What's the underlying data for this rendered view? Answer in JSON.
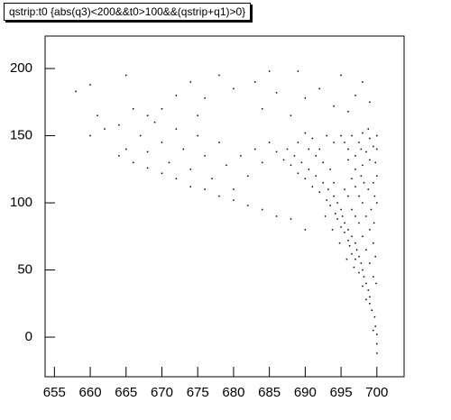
{
  "chart_data": {
    "type": "scatter",
    "title": "qstrip:t0 {abs(q3)<200&&t0>100&&(qstrip+q1)>0}",
    "color": "#000000",
    "xlim": [
      653.7,
      703.8
    ],
    "ylim": [
      -29.5,
      224.2
    ],
    "xticks": [
      655,
      660,
      665,
      670,
      675,
      680,
      685,
      690,
      695,
      700
    ],
    "yticks": [
      0,
      50,
      100,
      150,
      200
    ],
    "x": [
      700,
      700,
      700,
      699.8,
      699.7,
      699.5,
      699.3,
      699,
      699,
      698.8,
      698.5,
      698.5,
      698.2,
      698,
      698,
      697.8,
      697.5,
      697.5,
      697.2,
      697,
      697,
      696.8,
      696.5,
      696.5,
      696.2,
      696,
      696,
      695.8,
      695.5,
      695.5,
      695.2,
      695,
      695,
      694.8,
      694.5,
      694.5,
      694.2,
      694,
      693.8,
      693.5,
      693.2,
      693,
      692.8,
      692.5,
      692,
      691.5,
      691,
      690.5,
      690,
      689.5,
      689,
      688.5,
      688,
      687.5,
      687,
      686,
      685,
      684,
      683,
      682,
      681,
      680,
      679,
      678,
      677,
      676,
      675,
      674,
      673,
      672,
      671,
      670,
      669,
      668,
      667,
      666,
      665,
      664,
      662,
      661,
      660,
      658,
      660,
      696,
      696.5,
      697,
      697.5,
      698,
      698.5,
      699,
      699.5,
      699,
      698,
      697,
      696,
      695.5,
      695,
      694,
      693,
      692,
      691,
      690,
      689,
      700,
      700,
      699.8,
      698.8,
      697.8,
      699,
      698,
      697,
      696,
      695,
      694,
      692,
      690,
      689,
      688,
      686,
      685,
      684,
      683,
      680,
      678,
      676,
      675,
      672,
      670,
      668,
      665,
      674,
      690,
      688,
      686,
      684,
      682,
      680,
      678,
      676,
      674,
      672,
      670,
      668,
      666,
      664,
      699.5,
      699,
      698.5,
      698,
      697.5,
      697,
      696.5,
      696,
      695.5,
      699.8,
      699.5,
      699,
      698.5,
      698,
      697.5,
      697,
      696.5,
      699.9,
      699.6,
      699.2,
      698.8,
      698.2,
      697.8,
      699.5,
      700,
      700,
      699.7,
      694,
      693.5,
      692.5,
      691.5,
      690.5
    ],
    "values": [
      -12,
      -5,
      2,
      8,
      15,
      5,
      20,
      25,
      30,
      35,
      28,
      40,
      45,
      38,
      50,
      55,
      48,
      60,
      65,
      58,
      70,
      52,
      62,
      75,
      68,
      80,
      72,
      58,
      85,
      78,
      90,
      82,
      95,
      70,
      100,
      88,
      92,
      105,
      80,
      98,
      110,
      102,
      90,
      115,
      108,
      120,
      112,
      125,
      118,
      130,
      122,
      135,
      128,
      140,
      132,
      138,
      145,
      130,
      140,
      120,
      135,
      110,
      128,
      145,
      118,
      135,
      150,
      125,
      140,
      155,
      130,
      145,
      160,
      138,
      150,
      170,
      140,
      158,
      155,
      165,
      188,
      183,
      150,
      140,
      150,
      135,
      145,
      152,
      138,
      148,
      142,
      132,
      128,
      125,
      132,
      145,
      150,
      145,
      150,
      140,
      148,
      152,
      145,
      140,
      150,
      130,
      155,
      140,
      175,
      190,
      180,
      168,
      195,
      172,
      185,
      178,
      198,
      165,
      182,
      198,
      170,
      190,
      185,
      195,
      178,
      165,
      180,
      170,
      165,
      195,
      190,
      80,
      88,
      90,
      95,
      98,
      102,
      105,
      110,
      112,
      118,
      122,
      126,
      130,
      135,
      45,
      55,
      65,
      75,
      85,
      90,
      95,
      105,
      110,
      60,
      70,
      80,
      90,
      100,
      105,
      112,
      118,
      40,
      85,
      95,
      110,
      115,
      120,
      115,
      100,
      120,
      105,
      115,
      125,
      130,
      135,
      140
    ]
  }
}
